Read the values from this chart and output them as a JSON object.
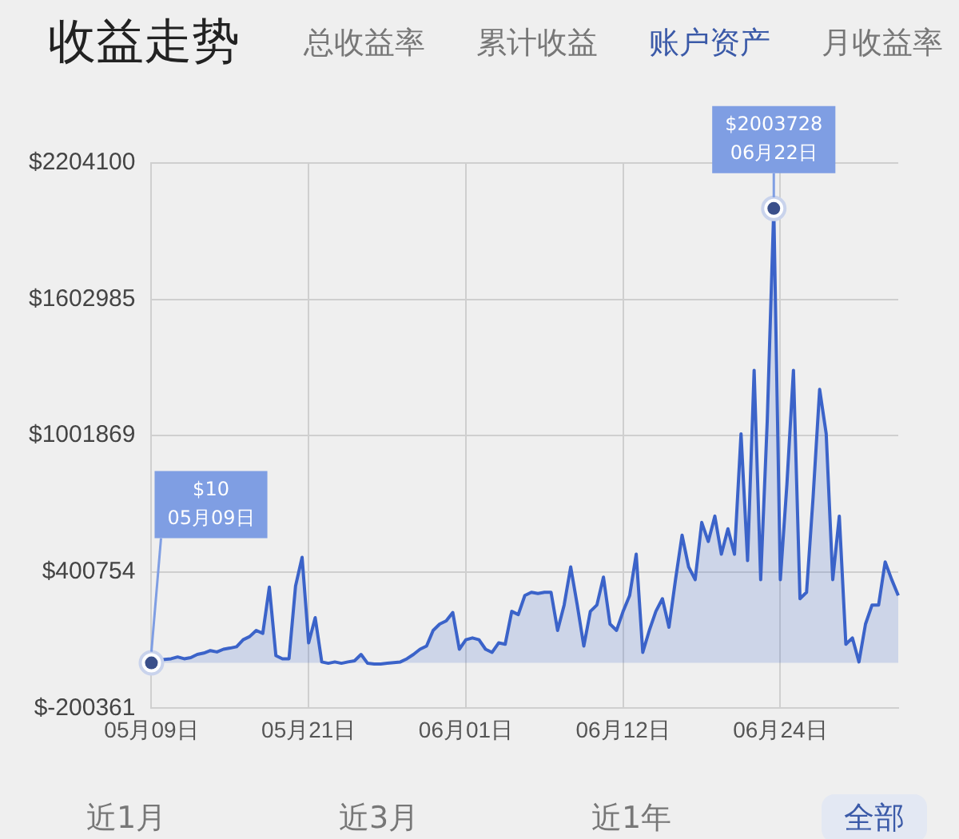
{
  "chart_data": {
    "type": "area",
    "title": "收益走势",
    "categories": [
      "05月09日",
      null,
      null,
      null,
      null,
      null,
      null,
      null,
      null,
      null,
      null,
      null,
      null,
      null,
      null,
      null,
      null,
      null,
      null,
      null,
      null,
      null,
      null,
      null,
      "05月21日",
      null,
      null,
      null,
      null,
      null,
      null,
      null,
      null,
      null,
      null,
      null,
      null,
      null,
      null,
      null,
      null,
      null,
      null,
      null,
      null,
      null,
      null,
      null,
      "06月01日",
      null,
      null,
      null,
      null,
      null,
      null,
      null,
      null,
      null,
      null,
      null,
      null,
      null,
      null,
      null,
      null,
      null,
      null,
      null,
      null,
      null,
      null,
      null,
      "06月12日",
      null,
      null,
      null,
      null,
      null,
      null,
      null,
      null,
      null,
      null,
      null,
      null,
      null,
      null,
      null,
      null,
      null,
      null,
      null,
      null,
      null,
      null,
      null,
      "06月24日",
      null,
      null,
      null,
      null,
      null,
      null,
      null,
      null,
      null,
      null,
      null,
      null,
      null,
      null,
      null,
      null,
      null,
      null
    ],
    "series": [
      {
        "color": "#3b63c9",
        "values": [
          10,
          12000,
          15000,
          18000,
          26000,
          18000,
          23000,
          37000,
          43000,
          54000,
          48000,
          60000,
          65000,
          71000,
          102000,
          116000,
          143000,
          130000,
          334000,
          32000,
          18000,
          18000,
          339000,
          465000,
          88000,
          199000,
          4000,
          -2000,
          4000,
          -2000,
          4000,
          9000,
          37000,
          -2000,
          -5000,
          -5000,
          -2000,
          1000,
          4000,
          18000,
          37000,
          60000,
          74000,
          143000,
          171000,
          185000,
          222000,
          60000,
          102000,
          110000,
          102000,
          60000,
          46000,
          88000,
          82000,
          227000,
          213000,
          297000,
          311000,
          306000,
          311000,
          311000,
          143000,
          255000,
          423000,
          255000,
          74000,
          227000,
          255000,
          378000,
          171000,
          143000,
          227000,
          297000,
          479000,
          46000,
          143000,
          227000,
          283000,
          157000,
          367000,
          563000,
          423000,
          367000,
          619000,
          535000,
          647000,
          479000,
          591000,
          479000,
          1010000,
          451000,
          1290000,
          367000,
          1066000,
          2003728,
          367000,
          786000,
          1290000,
          283000,
          311000,
          731000,
          1206000,
          1010000,
          367000,
          647000,
          82000,
          110000,
          4000,
          171000,
          255000,
          255000,
          445000,
          367000,
          297000
        ]
      }
    ],
    "ylim": [
      -200361,
      2204100
    ],
    "yticks": [
      {
        "value": -200361,
        "label": "$-200361"
      },
      {
        "value": 400754,
        "label": "$400754"
      },
      {
        "value": 1001869,
        "label": "$1001869"
      },
      {
        "value": 1602985,
        "label": "$1602985"
      },
      {
        "value": 2204100,
        "label": "$2204100"
      }
    ],
    "grid": true,
    "legend": false,
    "marker": "none",
    "annotations": [
      "总收益率",
      "累计收益",
      "账户资产",
      "月收益率",
      "近1月",
      "近3月",
      "近1年",
      "全部",
      {
        "text": "$2003728\n06月22日",
        "y": 2003728
      },
      {
        "text": "$10\n05月09日",
        "x": "05月09日",
        "y": 10
      }
    ]
  }
}
